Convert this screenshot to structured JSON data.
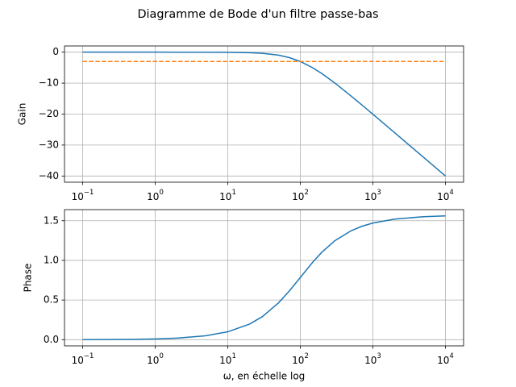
{
  "title": "Diagramme de Bode d'un filtre passe-bas",
  "chart_data": [
    {
      "type": "line",
      "log_x": true,
      "grid": true,
      "ylabel": "Gain",
      "xlim": [
        0.0562,
        17783
      ],
      "ylim": [
        -42.0,
        2.0
      ],
      "xticks": [
        {
          "value": 0.1,
          "label": "10",
          "exponent": "−1"
        },
        {
          "value": 1,
          "label": "10",
          "exponent": "0"
        },
        {
          "value": 10,
          "label": "10",
          "exponent": "1"
        },
        {
          "value": 100,
          "label": "10",
          "exponent": "2"
        },
        {
          "value": 1000,
          "label": "10",
          "exponent": "3"
        },
        {
          "value": 10000,
          "label": "10",
          "exponent": "4"
        }
      ],
      "yticks": [
        {
          "value": 0,
          "label": "0"
        },
        {
          "value": -10,
          "label": "−10"
        },
        {
          "value": -20,
          "label": "−20"
        },
        {
          "value": -30,
          "label": "−30"
        },
        {
          "value": -40,
          "label": "−40"
        }
      ],
      "series": [
        {
          "color": "#1f77b4",
          "dash": false,
          "x": [
            0.1,
            0.2,
            0.5,
            1,
            2,
            5,
            10,
            20,
            30,
            50,
            70,
            100,
            150,
            200,
            300,
            500,
            700,
            1000,
            2000,
            5000,
            10000
          ],
          "values": [
            0,
            0,
            -0.0001,
            -0.0004,
            -0.0017,
            -0.011,
            -0.043,
            -0.17,
            -0.37,
            -0.97,
            -1.74,
            -3.01,
            -5.12,
            -6.99,
            -10.0,
            -14.15,
            -17.0,
            -20.04,
            -26.03,
            -33.98,
            -40.0
          ]
        },
        {
          "color": "#ff7f0e",
          "dash": true,
          "x": [
            0.1,
            10000
          ],
          "values": [
            -3,
            -3
          ]
        }
      ]
    },
    {
      "type": "line",
      "log_x": true,
      "grid": true,
      "ylabel": "Phase",
      "xlabel": "ω, en échelle log",
      "xlim": [
        0.0562,
        17783
      ],
      "ylim": [
        -0.078,
        1.64
      ],
      "xticks": [
        {
          "value": 0.1,
          "label": "10",
          "exponent": "−1"
        },
        {
          "value": 1,
          "label": "10",
          "exponent": "0"
        },
        {
          "value": 10,
          "label": "10",
          "exponent": "1"
        },
        {
          "value": 100,
          "label": "10",
          "exponent": "2"
        },
        {
          "value": 1000,
          "label": "10",
          "exponent": "3"
        },
        {
          "value": 10000,
          "label": "10",
          "exponent": "4"
        }
      ],
      "yticks": [
        {
          "value": 0,
          "label": "0.0"
        },
        {
          "value": 0.5,
          "label": "0.5"
        },
        {
          "value": 1,
          "label": "1.0"
        },
        {
          "value": 1.5,
          "label": "1.5"
        }
      ],
      "series": [
        {
          "color": "#1f77b4",
          "dash": false,
          "x": [
            0.1,
            0.2,
            0.5,
            1,
            2,
            5,
            10,
            20,
            30,
            50,
            70,
            100,
            150,
            200,
            300,
            500,
            700,
            1000,
            2000,
            5000,
            10000
          ],
          "values": [
            0.001,
            0.002,
            0.005,
            0.01,
            0.02,
            0.05,
            0.0997,
            0.197,
            0.291,
            0.464,
            0.611,
            0.785,
            0.983,
            1.107,
            1.249,
            1.373,
            1.429,
            1.471,
            1.521,
            1.551,
            1.561
          ]
        }
      ]
    }
  ]
}
